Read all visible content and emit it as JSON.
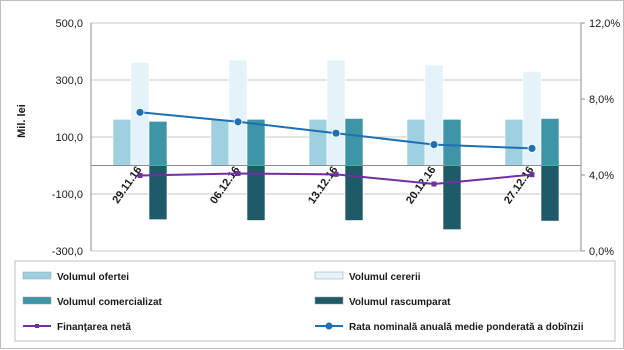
{
  "chart_data": {
    "type": "bar",
    "categories": [
      "29.11.16",
      "06.12.16",
      "13.12.16",
      "20.12.16",
      "27.12.16"
    ],
    "ylabel": "Mil. lei",
    "ylim": [
      -300,
      500
    ],
    "y_ticks": [
      "500,0",
      "300,0",
      "100,0",
      "-100,0",
      "-300,0"
    ],
    "y_tick_values": [
      500,
      300,
      100,
      -100,
      -300
    ],
    "y2lim": [
      0,
      12
    ],
    "y2_ticks": [
      "12,0%",
      "8,0%",
      "4,0%",
      "0,0%"
    ],
    "y2_tick_values": [
      12,
      8,
      4,
      0
    ],
    "grid": true,
    "legend_position": "bottom",
    "series": [
      {
        "name": "Volumul ofertei",
        "kind": "bar",
        "axis": "left",
        "color": "#9fd0e0",
        "values": [
          162,
          162,
          162,
          162,
          162
        ]
      },
      {
        "name": "Volumul cererii",
        "kind": "bar",
        "axis": "left",
        "color": "#e3f3f9",
        "values": [
          362,
          370,
          370,
          352,
          330
        ]
      },
      {
        "name": "Volumul comercializat",
        "kind": "bar",
        "axis": "left",
        "color": "#3f95a8",
        "values": [
          155,
          162,
          165,
          162,
          165
        ]
      },
      {
        "name": "Volumul rascumparat",
        "kind": "bar",
        "axis": "left",
        "color": "#1e5a68",
        "values": [
          -190,
          -193,
          -193,
          -225,
          -195
        ]
      },
      {
        "name": "Finanţarea netă",
        "kind": "line",
        "axis": "left",
        "color": "#7030a0",
        "values": [
          -35,
          -28,
          -31,
          -65,
          -32
        ]
      },
      {
        "name": "Rata nominală anuală medie ponderată a dobînzii",
        "kind": "line",
        "axis": "right",
        "color": "#1f6fb2",
        "values": [
          7.3,
          6.8,
          6.2,
          5.6,
          5.4
        ]
      }
    ]
  }
}
